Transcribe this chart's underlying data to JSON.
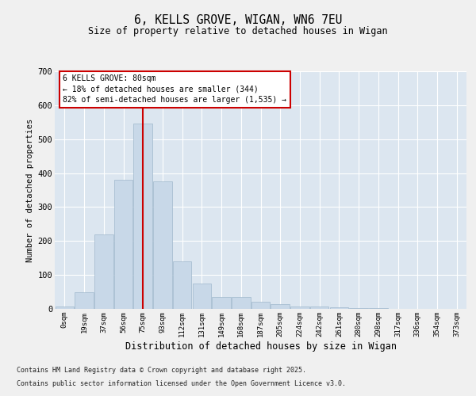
{
  "title_line1": "6, KELLS GROVE, WIGAN, WN6 7EU",
  "title_line2": "Size of property relative to detached houses in Wigan",
  "xlabel": "Distribution of detached houses by size in Wigan",
  "ylabel": "Number of detached properties",
  "bar_labels": [
    "0sqm",
    "19sqm",
    "37sqm",
    "56sqm",
    "75sqm",
    "93sqm",
    "112sqm",
    "131sqm",
    "149sqm",
    "168sqm",
    "187sqm",
    "205sqm",
    "224sqm",
    "242sqm",
    "261sqm",
    "280sqm",
    "298sqm",
    "317sqm",
    "336sqm",
    "354sqm",
    "373sqm"
  ],
  "bar_values": [
    8,
    50,
    220,
    380,
    545,
    375,
    140,
    75,
    35,
    35,
    20,
    15,
    8,
    8,
    5,
    3,
    2,
    1,
    1,
    0,
    0
  ],
  "bar_color": "#c8d8e8",
  "bar_edgecolor": "#a0b8cc",
  "vline_x": 4.0,
  "vline_color": "#cc0000",
  "ylim": [
    0,
    700
  ],
  "yticks": [
    0,
    100,
    200,
    300,
    400,
    500,
    600,
    700
  ],
  "annotation_text": "6 KELLS GROVE: 80sqm\n← 18% of detached houses are smaller (344)\n82% of semi-detached houses are larger (1,535) →",
  "annotation_box_color": "#cc0000",
  "background_color": "#dce6f0",
  "fig_background_color": "#f0f0f0",
  "footer_line1": "Contains HM Land Registry data © Crown copyright and database right 2025.",
  "footer_line2": "Contains public sector information licensed under the Open Government Licence v3.0."
}
